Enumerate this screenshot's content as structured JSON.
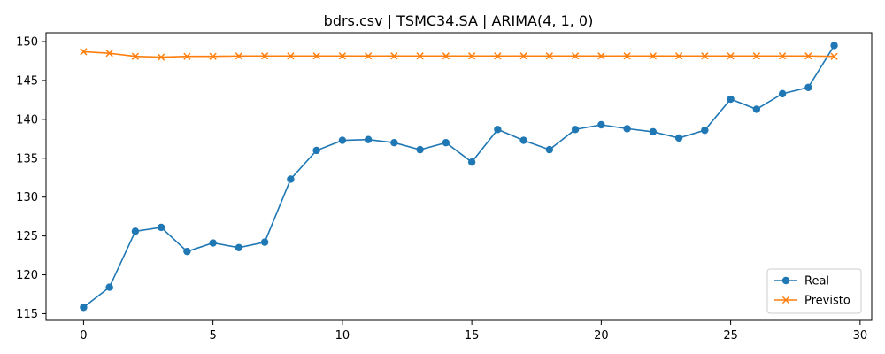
{
  "chart_data": {
    "type": "line",
    "title": "bdrs.csv | TSMC34.SA | ARIMA(4, 1, 0)",
    "xlabel": "",
    "ylabel": "",
    "x": [
      0,
      1,
      2,
      3,
      4,
      5,
      6,
      7,
      8,
      9,
      10,
      11,
      12,
      13,
      14,
      15,
      16,
      17,
      18,
      19,
      20,
      21,
      22,
      23,
      24,
      25,
      26,
      27,
      28,
      29
    ],
    "xlim": [
      -1.45,
      30.45
    ],
    "ylim": [
      114.14,
      151.14
    ],
    "xticks": [
      0,
      5,
      10,
      15,
      20,
      25,
      30
    ],
    "yticks": [
      115,
      120,
      125,
      130,
      135,
      140,
      145,
      150
    ],
    "grid": false,
    "legend_position": "lower-right",
    "series": [
      {
        "name": "Real",
        "color": "#1f77b4",
        "marker": "circle",
        "values": [
          115.82,
          118.4,
          125.6,
          126.1,
          123.0,
          124.1,
          123.5,
          124.2,
          132.3,
          136.0,
          137.3,
          137.4,
          137.0,
          136.1,
          137.0,
          134.5,
          138.7,
          137.3,
          136.1,
          138.7,
          139.3,
          138.8,
          138.4,
          137.6,
          138.6,
          142.6,
          141.3,
          143.3,
          144.1,
          149.5
        ]
      },
      {
        "name": "Previsto",
        "color": "#ff7f0e",
        "marker": "x",
        "values": [
          148.7,
          148.5,
          148.1,
          148.0,
          148.1,
          148.1,
          148.15,
          148.15,
          148.15,
          148.15,
          148.15,
          148.15,
          148.15,
          148.15,
          148.15,
          148.15,
          148.15,
          148.15,
          148.15,
          148.15,
          148.15,
          148.15,
          148.15,
          148.15,
          148.15,
          148.15,
          148.15,
          148.15,
          148.15,
          148.1
        ]
      }
    ]
  }
}
